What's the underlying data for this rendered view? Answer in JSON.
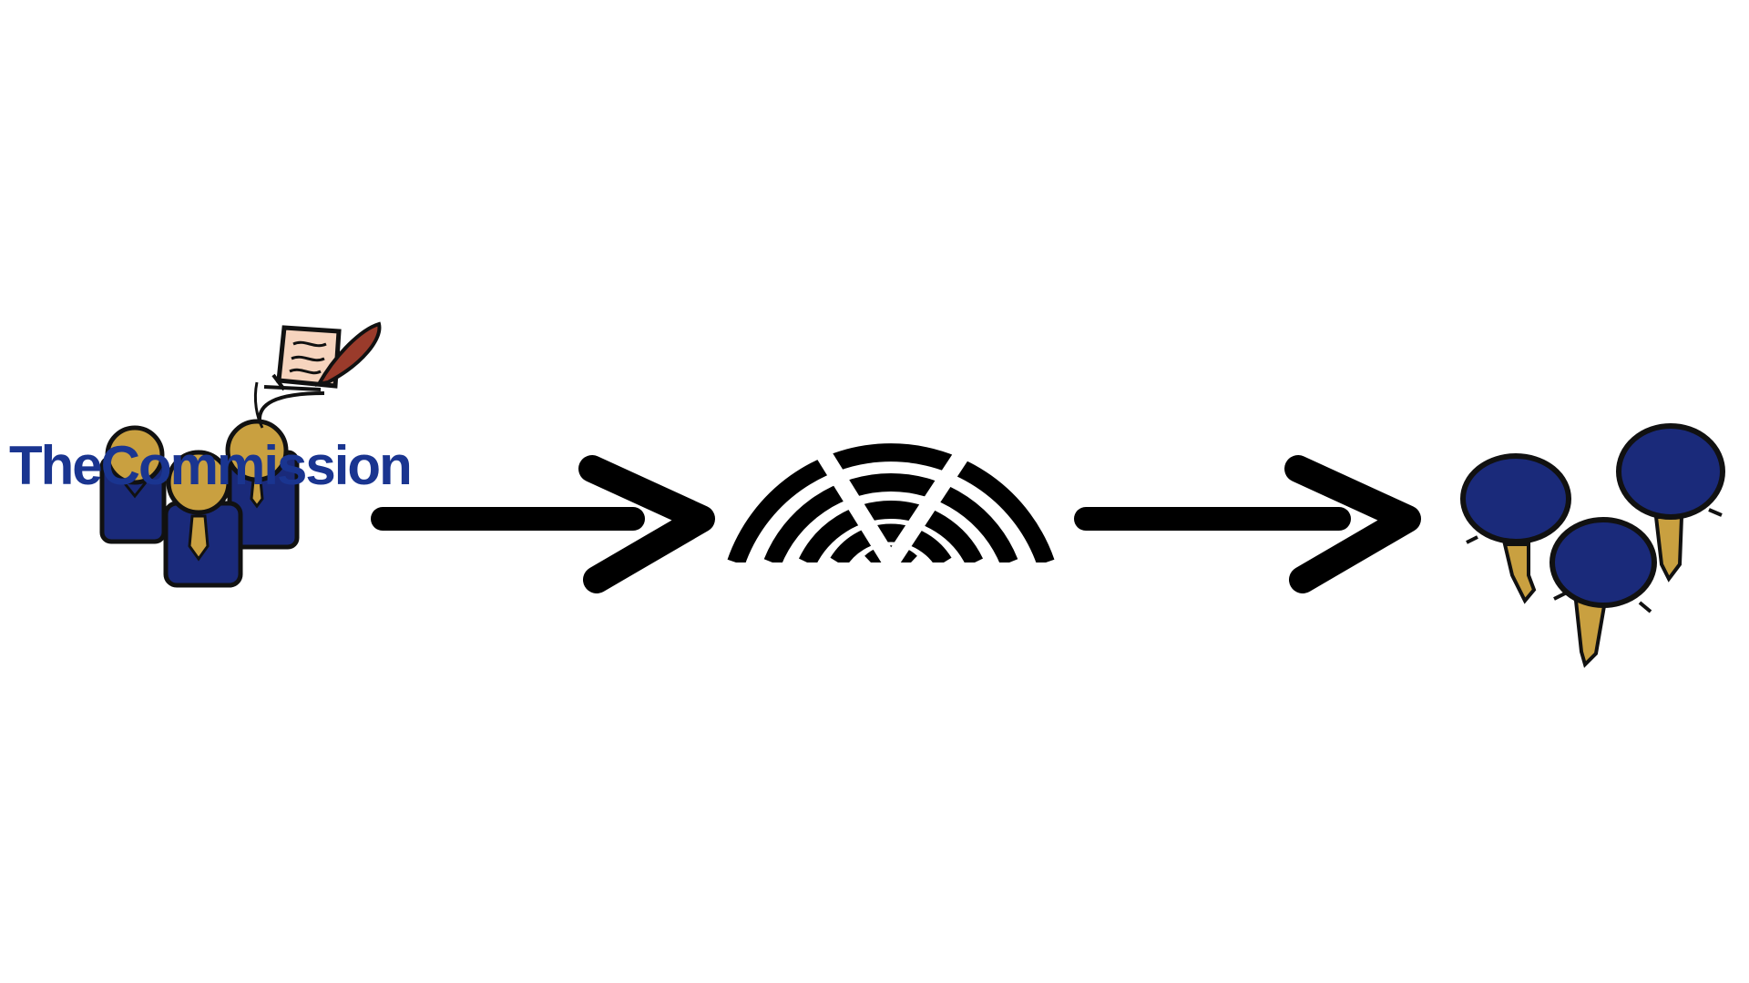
{
  "commission": {
    "label": "TheCommission"
  },
  "colors": {
    "suit": "#1a2a7a",
    "skin": "#c9a040",
    "outline": "#111111",
    "label": "#1a3590",
    "paper": "#f6d4be",
    "quill": "#9a3b2b",
    "background": "#ffffff"
  },
  "icons": {
    "commission_group": "three-officials-icon",
    "document": "document-with-quill-icon",
    "parliament": "parliament-hemicycle-icon",
    "citizens": "three-pins-icon",
    "arrows": "right-arrow-icon"
  }
}
